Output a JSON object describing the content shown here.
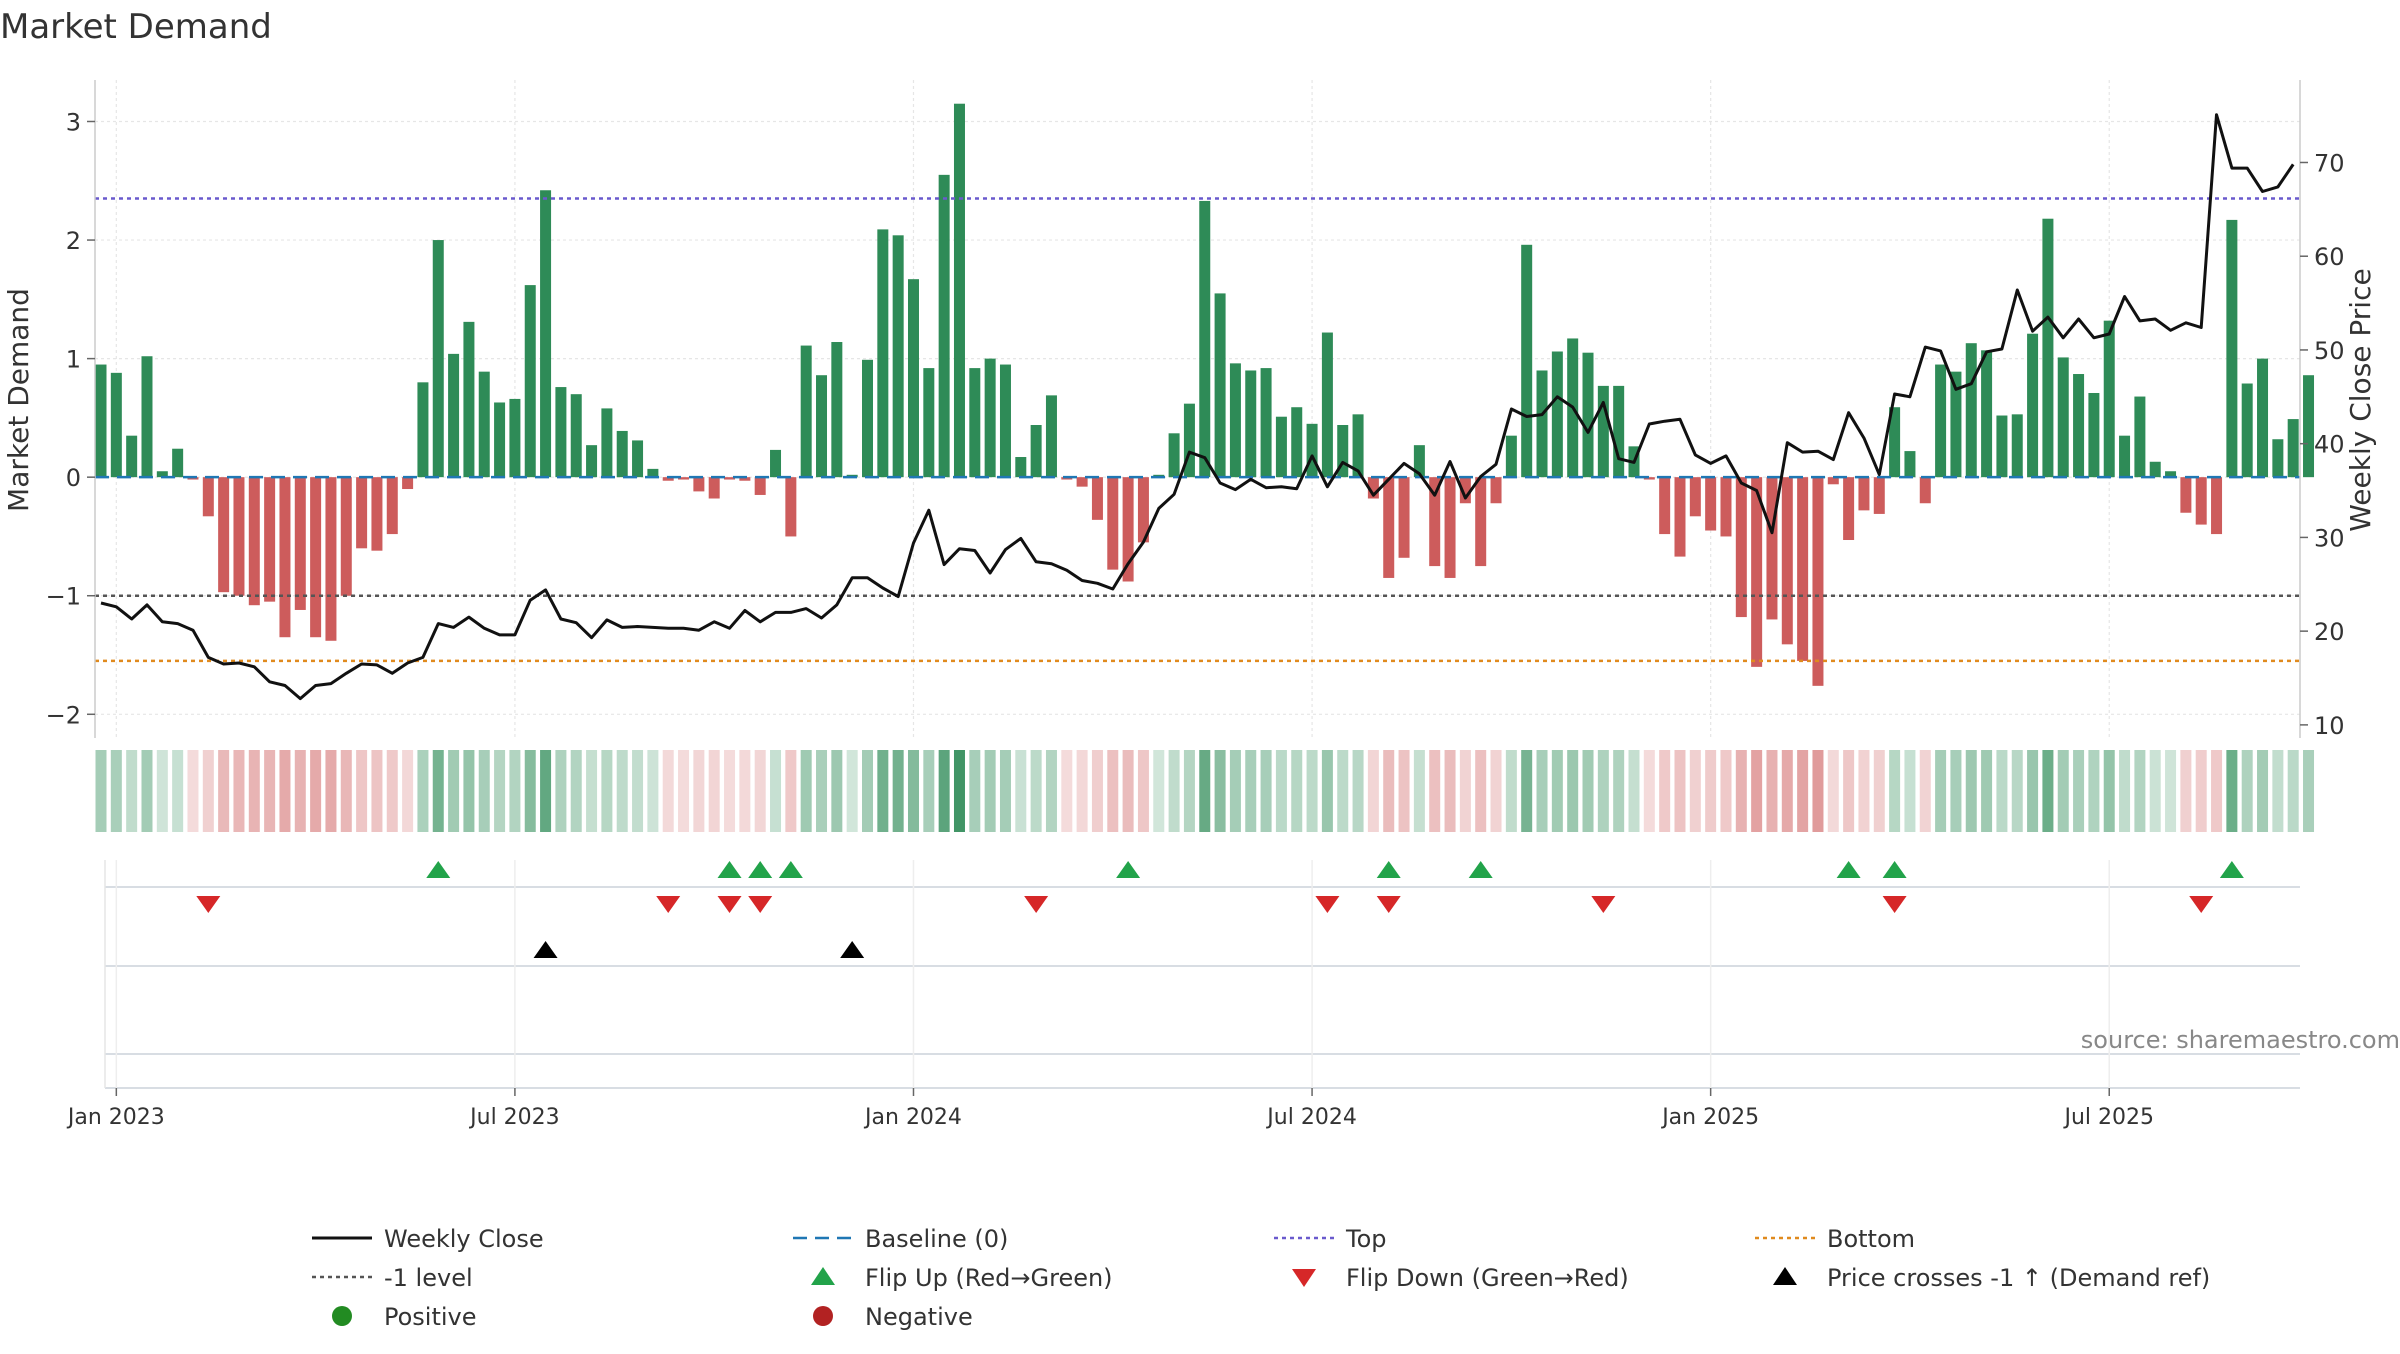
{
  "chart_data": {
    "type": "bar",
    "title": "Market Demand",
    "ylabel": "Market Demand",
    "y2label": "Weekly Close Price",
    "source": "source: sharemaestro.com",
    "ylim": [
      -2.2,
      3.35
    ],
    "y2lim": [
      8.6,
      78.8
    ],
    "yticks": [
      {
        "v": 3,
        "label": "3"
      },
      {
        "v": 2,
        "label": "2"
      },
      {
        "v": 1,
        "label": "1"
      },
      {
        "v": 0,
        "label": "0"
      },
      {
        "v": -1,
        "label": "−1"
      },
      {
        "v": -2,
        "label": "−2"
      }
    ],
    "y2ticks": [
      {
        "v": 70,
        "label": "70"
      },
      {
        "v": 60,
        "label": "60"
      },
      {
        "v": 50,
        "label": "50"
      },
      {
        "v": 40,
        "label": "40"
      },
      {
        "v": 30,
        "label": "30"
      },
      {
        "v": 20,
        "label": "20"
      },
      {
        "v": 10,
        "label": "10"
      }
    ],
    "xticks": [
      {
        "week": 1,
        "label": "Jan 2023"
      },
      {
        "week": 27,
        "label": "Jul 2023"
      },
      {
        "week": 53,
        "label": "Jan 2024"
      },
      {
        "week": 79,
        "label": "Jul 2024"
      },
      {
        "week": 105,
        "label": "Jan 2025"
      },
      {
        "week": 131,
        "label": "Jul 2025"
      }
    ],
    "reference_lines": {
      "baseline": 0,
      "level": -1,
      "top": 2.35,
      "bottom": -1.55
    },
    "weeks": 144,
    "demand": [
      0.95,
      0.88,
      0.35,
      1.02,
      0.05,
      0.24,
      -0.02,
      -0.33,
      -0.97,
      -1.0,
      -1.08,
      -1.05,
      -1.35,
      -1.12,
      -1.35,
      -1.38,
      -1.0,
      -0.6,
      -0.62,
      -0.48,
      -0.1,
      0.8,
      2.0,
      1.04,
      1.31,
      0.89,
      0.63,
      0.66,
      1.62,
      2.42,
      0.76,
      0.7,
      0.27,
      0.58,
      0.39,
      0.31,
      0.07,
      -0.03,
      -0.02,
      -0.12,
      -0.18,
      -0.02,
      -0.03,
      -0.15,
      0.23,
      -0.5,
      1.11,
      0.86,
      1.14,
      0.02,
      0.99,
      2.09,
      2.04,
      1.67,
      0.92,
      2.55,
      3.15,
      0.92,
      1.0,
      0.95,
      0.17,
      0.44,
      0.69,
      -0.02,
      -0.08,
      -0.36,
      -0.78,
      -0.88,
      -0.55,
      0.02,
      0.37,
      0.62,
      2.33,
      1.55,
      0.96,
      0.9,
      0.92,
      0.51,
      0.59,
      0.45,
      1.22,
      0.44,
      0.53,
      -0.18,
      -0.85,
      -0.68,
      0.27,
      -0.75,
      -0.85,
      -0.22,
      -0.75,
      -0.22,
      0.35,
      1.96,
      0.9,
      1.06,
      1.17,
      1.05,
      0.77,
      0.77,
      0.26,
      -0.02,
      -0.48,
      -0.67,
      -0.33,
      -0.45,
      -0.5,
      -1.18,
      -1.6,
      -1.2,
      -1.41,
      -1.55,
      -1.76,
      -0.06,
      -0.53,
      -0.28,
      -0.31,
      0.59,
      0.22,
      -0.22,
      0.95,
      0.89,
      1.13,
      1.07,
      0.52,
      0.53,
      1.21,
      2.18,
      1.01,
      0.87,
      0.71,
      1.32,
      0.35,
      0.68,
      0.13,
      0.05,
      -0.3,
      -0.4,
      -0.48,
      2.17,
      0.79,
      1.0,
      0.32,
      0.49,
      0.86
    ],
    "series": [
      {
        "name": "Weekly Close",
        "axis": "right",
        "values": [
          23.0,
          22.6,
          21.3,
          22.8,
          21.0,
          20.8,
          20.1,
          17.2,
          16.5,
          16.6,
          16.2,
          14.6,
          14.2,
          12.8,
          14.2,
          14.4,
          15.5,
          16.5,
          16.4,
          15.5,
          16.6,
          17.2,
          20.8,
          20.4,
          21.5,
          20.3,
          19.6,
          19.6,
          23.3,
          24.4,
          21.3,
          20.9,
          19.3,
          21.2,
          20.4,
          20.5,
          20.4,
          20.3,
          20.3,
          20.1,
          21.0,
          20.3,
          22.2,
          21.0,
          22.0,
          22.0,
          22.4,
          21.4,
          22.8,
          25.7,
          25.7,
          24.6,
          23.7,
          29.4,
          32.9,
          27.1,
          28.8,
          28.6,
          26.2,
          28.7,
          29.9,
          27.4,
          27.2,
          26.5,
          25.4,
          25.1,
          24.5,
          27.2,
          29.5,
          33.1,
          34.6,
          39.1,
          38.5,
          35.8,
          35.1,
          36.2,
          35.3,
          35.4,
          35.2,
          38.7,
          35.4,
          38.0,
          37.1,
          34.5,
          36.2,
          37.9,
          36.8,
          34.5,
          38.1,
          34.2,
          36.5,
          37.8,
          43.7,
          42.9,
          43.1,
          45.0,
          43.9,
          41.2,
          44.4,
          38.4,
          38.0,
          42.1,
          42.4,
          42.6,
          38.8,
          37.9,
          38.7,
          35.8,
          35.0,
          30.5,
          40.1,
          39.1,
          39.2,
          38.3,
          43.3,
          40.6,
          36.7,
          45.3,
          45.0,
          50.3,
          49.9,
          45.8,
          46.4,
          49.8,
          50.1,
          56.4,
          52.0,
          53.5,
          51.3,
          53.3,
          51.3,
          51.7,
          55.7,
          53.1,
          53.3,
          52.1,
          52.9,
          52.4,
          75.1,
          69.4,
          69.4,
          66.9,
          67.4,
          69.8
        ]
      },
      {
        "name": "Baseline (0)"
      },
      {
        "name": "-1 level"
      },
      {
        "name": "Top"
      },
      {
        "name": "Bottom"
      }
    ],
    "events": {
      "flip_up": [
        22,
        41,
        43,
        45,
        67,
        84,
        90,
        114,
        117,
        139
      ],
      "flip_down": [
        7,
        37,
        41,
        43,
        61,
        80,
        84,
        98,
        117,
        137
      ],
      "price_cross": [
        29,
        49
      ]
    },
    "legend": [
      {
        "label": "Weekly Close",
        "sym": "line",
        "color": "#111111"
      },
      {
        "label": "Baseline (0)",
        "sym": "dash",
        "color": "#1f77b4"
      },
      {
        "label": "Top",
        "sym": "dot",
        "color": "#6a5acd"
      },
      {
        "label": "Bottom",
        "sym": "dot",
        "color": "#e08a1e"
      },
      {
        "label": "-1 level",
        "sym": "dot",
        "color": "#555555"
      },
      {
        "label": "Flip Up (Red→Green)",
        "sym": "tri-up",
        "color": "#22a34a"
      },
      {
        "label": "Flip Down (Green→Red)",
        "sym": "tri-down",
        "color": "#d62728"
      },
      {
        "label": "Price crosses -1 ↑ (Demand ref)",
        "sym": "tri-up",
        "color": "#000000"
      },
      {
        "label": "Positive",
        "sym": "circle",
        "color": "#228b22"
      },
      {
        "label": "Negative",
        "sym": "circle",
        "color": "#b22222"
      }
    ],
    "colors": {
      "positive_bar": "#2e8b57",
      "negative_bar": "#cd5c5c",
      "price_line": "#111111",
      "baseline": "#1f77b4",
      "level": "#555555",
      "top": "#6a5acd",
      "bottom": "#e08a1e",
      "flip_up": "#22a34a",
      "flip_down": "#d62728",
      "price_cross": "#000000",
      "grid": "#e6e6e6"
    }
  }
}
